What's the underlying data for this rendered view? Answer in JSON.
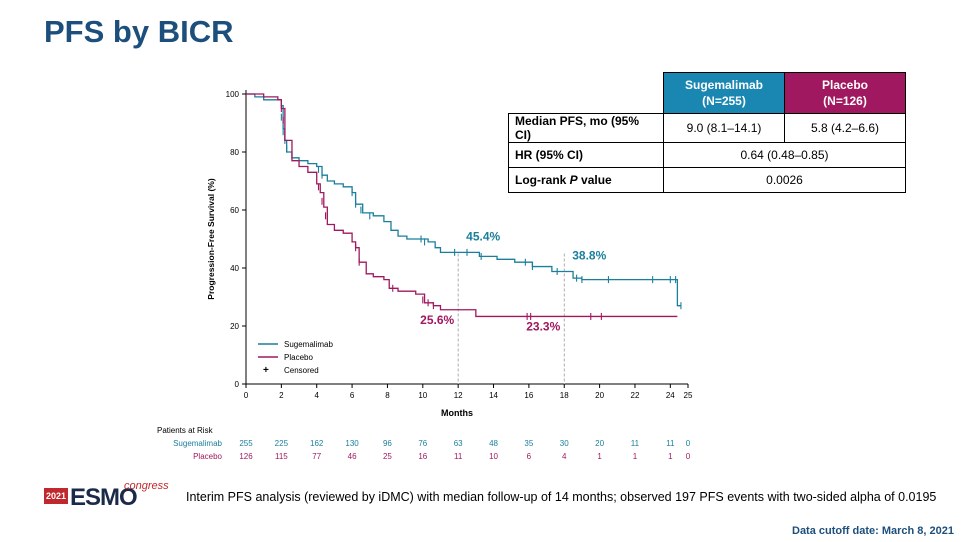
{
  "page": {
    "title": "PFS by BICR",
    "footnote": "Interim PFS analysis (reviewed by iDMC) with median follow-up of 14 months; observed 197 PFS events with two-sided alpha of 0.0195",
    "cutoff": "Data cutoff date: March 8, 2021",
    "logo": {
      "year": "2021",
      "brand": "ESMO",
      "suffix": "congress"
    }
  },
  "colors": {
    "sugemalimab": "#1a7f9c",
    "placebo": "#a0185f",
    "title": "#1c4f7c",
    "table_sug_bg": "#1a87b3",
    "table_pla_bg": "#a0185f"
  },
  "table": {
    "headers": [
      {
        "line1": "Sugemalimab",
        "line2": "(N=255)"
      },
      {
        "line1": "Placebo",
        "line2": "(N=126)"
      }
    ],
    "rows": [
      {
        "label": "Median PFS, mo (95% CI)",
        "sug": "9.0 (8.1–14.1)",
        "pla": "5.8 (4.2–6.6)"
      },
      {
        "label": "HR (95% CI)",
        "combined": "0.64 (0.48–0.85)"
      },
      {
        "label": "Log-rank P value",
        "combined": "0.0026"
      }
    ]
  },
  "chart_data": {
    "type": "line",
    "subtype": "kaplan-meier step",
    "xlabel": "Months",
    "ylabel": "Progression-Free Survival (%)",
    "xlim": [
      0,
      25
    ],
    "ylim": [
      0,
      100
    ],
    "xticks": [
      0,
      2,
      4,
      6,
      8,
      10,
      12,
      14,
      16,
      18,
      20,
      22,
      24,
      25
    ],
    "yticks": [
      0,
      20,
      40,
      60,
      80,
      100
    ],
    "legend": {
      "placement": "bottom-left",
      "entries": [
        "Sugemalimab",
        "Placebo",
        "Censored"
      ]
    },
    "series": [
      {
        "name": "Sugemalimab",
        "color_key": "sugemalimab",
        "points": [
          [
            0,
            100
          ],
          [
            0.5,
            99
          ],
          [
            1,
            98
          ],
          [
            1.5,
            98
          ],
          [
            2,
            96
          ],
          [
            2.1,
            88
          ],
          [
            2.2,
            84
          ],
          [
            2.3,
            80
          ],
          [
            2.6,
            78
          ],
          [
            3,
            77
          ],
          [
            3.5,
            76
          ],
          [
            4,
            75
          ],
          [
            4.3,
            72
          ],
          [
            4.6,
            70
          ],
          [
            5,
            69
          ],
          [
            5.5,
            68
          ],
          [
            6,
            66
          ],
          [
            6.2,
            62
          ],
          [
            6.6,
            59
          ],
          [
            7.2,
            58
          ],
          [
            7.8,
            56
          ],
          [
            8.2,
            53
          ],
          [
            8.6,
            51
          ],
          [
            9.1,
            50
          ],
          [
            10.3,
            49
          ],
          [
            10.7,
            47
          ],
          [
            11,
            45.4
          ],
          [
            12,
            45.4
          ],
          [
            13.2,
            44
          ],
          [
            14.2,
            43
          ],
          [
            15.2,
            42
          ],
          [
            16.2,
            40.5
          ],
          [
            17.3,
            38.8
          ],
          [
            18.5,
            36.5
          ],
          [
            19,
            36
          ],
          [
            24.2,
            36
          ],
          [
            24.4,
            27
          ],
          [
            24.6,
            27
          ]
        ],
        "censor": [
          [
            2,
            92
          ],
          [
            2.1,
            87
          ],
          [
            2.2,
            84
          ],
          [
            2.3,
            81
          ],
          [
            4.1,
            74
          ],
          [
            4.3,
            72
          ],
          [
            6,
            66
          ],
          [
            6.2,
            62
          ],
          [
            6.5,
            60
          ],
          [
            7,
            58
          ],
          [
            9.9,
            50
          ],
          [
            10.1,
            49
          ],
          [
            11.8,
            45.4
          ],
          [
            12.5,
            45.4
          ],
          [
            13.3,
            44
          ],
          [
            15.8,
            42
          ],
          [
            16.2,
            40.5
          ],
          [
            17.6,
            38.8
          ],
          [
            18.7,
            36.5
          ],
          [
            19,
            36
          ],
          [
            20.5,
            36
          ],
          [
            23,
            36
          ],
          [
            24,
            36
          ],
          [
            24.3,
            36
          ],
          [
            24.6,
            27
          ]
        ],
        "labels": [
          {
            "text": "45.4%",
            "x": 12,
            "y": 45.4
          },
          {
            "text": "38.8%",
            "x": 18,
            "y": 38.8
          }
        ]
      },
      {
        "name": "Placebo",
        "color_key": "placebo",
        "points": [
          [
            0,
            100
          ],
          [
            1,
            99
          ],
          [
            1.8,
            98
          ],
          [
            2,
            95
          ],
          [
            2.2,
            84
          ],
          [
            2.6,
            77
          ],
          [
            3,
            75
          ],
          [
            3.5,
            73
          ],
          [
            4,
            69
          ],
          [
            4.2,
            66
          ],
          [
            4.4,
            61
          ],
          [
            4.6,
            55
          ],
          [
            5,
            53
          ],
          [
            5.5,
            52
          ],
          [
            6,
            49
          ],
          [
            6.2,
            47
          ],
          [
            6.4,
            42
          ],
          [
            6.8,
            38
          ],
          [
            7.2,
            37
          ],
          [
            7.8,
            36
          ],
          [
            8.1,
            33
          ],
          [
            8.6,
            32
          ],
          [
            9.6,
            31
          ],
          [
            10.1,
            28
          ],
          [
            10.6,
            27
          ],
          [
            11,
            25.6
          ],
          [
            12,
            25.6
          ],
          [
            12.5,
            25.6
          ],
          [
            13,
            23.3
          ],
          [
            18,
            23.3
          ],
          [
            24.4,
            23.3
          ]
        ],
        "censor": [
          [
            2,
            95
          ],
          [
            2.1,
            91
          ],
          [
            2.2,
            86
          ],
          [
            4.1,
            68
          ],
          [
            4.3,
            63
          ],
          [
            4.5,
            58
          ],
          [
            6.2,
            47
          ],
          [
            6.4,
            42
          ],
          [
            8.3,
            33
          ],
          [
            10,
            29
          ],
          [
            10.3,
            28
          ],
          [
            10.6,
            27
          ],
          [
            15.9,
            23.3
          ],
          [
            16.1,
            23.3
          ],
          [
            19.5,
            23.3
          ],
          [
            20.1,
            23.3
          ]
        ],
        "labels": [
          {
            "text": "25.6%",
            "x": 12,
            "y": 25.6
          },
          {
            "text": "23.3%",
            "x": 18,
            "y": 23.3
          }
        ]
      }
    ],
    "reference_lines": [
      {
        "x": 12
      },
      {
        "x": 18
      }
    ],
    "at_risk": {
      "title": "Patients at Risk",
      "times": [
        0,
        2,
        4,
        6,
        8,
        10,
        12,
        14,
        16,
        18,
        20,
        22,
        24,
        25
      ],
      "rows": [
        {
          "name": "Sugemalimab",
          "color_key": "sugemalimab",
          "values": [
            255,
            225,
            162,
            130,
            96,
            76,
            63,
            48,
            35,
            30,
            20,
            11,
            11,
            0
          ]
        },
        {
          "name": "Placebo",
          "color_key": "placebo",
          "values": [
            126,
            115,
            77,
            46,
            25,
            16,
            11,
            10,
            6,
            4,
            1,
            1,
            1,
            0
          ]
        }
      ]
    }
  }
}
